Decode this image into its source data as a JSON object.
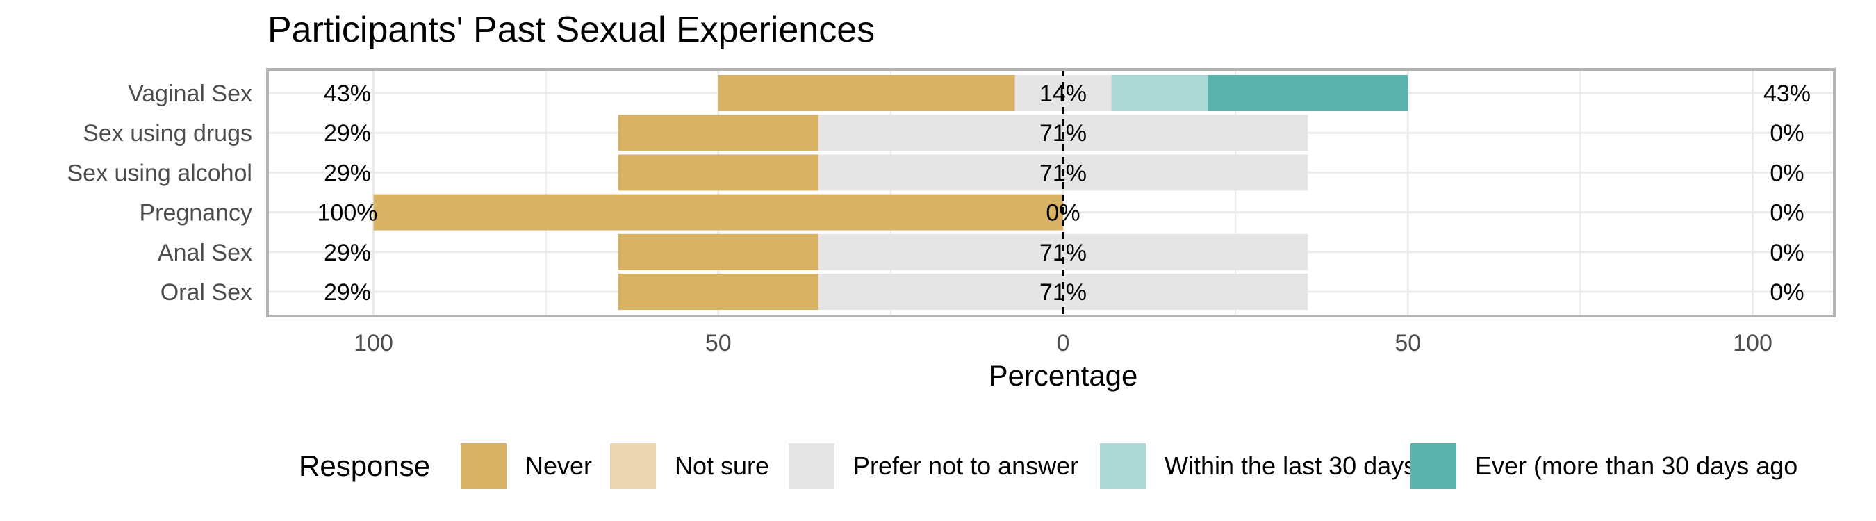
{
  "chart_data": {
    "type": "bar",
    "subtype": "diverging-stacked-likert",
    "title": "Participants' Past Sexual Experiences",
    "xlabel": "Percentage",
    "ylabel": "",
    "xlim": [
      -100,
      100
    ],
    "x_ticks": [
      -100,
      -50,
      0,
      50,
      100
    ],
    "x_tick_labels": [
      "100",
      "50",
      "0",
      "50",
      "100"
    ],
    "grid": true,
    "legend_position": "bottom",
    "legend_title": "Response",
    "levels": [
      {
        "name": "Never",
        "color": "#D8B365"
      },
      {
        "name": "Not sure",
        "color": "#EBD8B2"
      },
      {
        "name": "Prefer not to answer",
        "color": "#E5E5E5"
      },
      {
        "name": "Within the last 30 days",
        "color": "#ACD9D5"
      },
      {
        "name": "Ever (more than 30 days ago",
        "color": "#5AB4AC"
      }
    ],
    "categories": [
      "Vaginal Sex",
      "Sex using drugs",
      "Sex using alcohol",
      "Pregnancy",
      "Anal Sex",
      "Oral Sex"
    ],
    "rows": [
      {
        "category": "Vaginal Sex",
        "values": [
          43,
          0,
          14,
          14,
          29
        ],
        "left_label": "43%",
        "center_label": "14%",
        "right_label": "43%"
      },
      {
        "category": "Sex using drugs",
        "values": [
          29,
          0,
          71,
          0,
          0
        ],
        "left_label": "29%",
        "center_label": "71%",
        "right_label": "0%"
      },
      {
        "category": "Sex using alcohol",
        "values": [
          29,
          0,
          71,
          0,
          0
        ],
        "left_label": "29%",
        "center_label": "71%",
        "right_label": "0%"
      },
      {
        "category": "Pregnancy",
        "values": [
          100,
          0,
          0,
          0,
          0
        ],
        "left_label": "100%",
        "center_label": "0%",
        "right_label": "0%"
      },
      {
        "category": "Anal Sex",
        "values": [
          29,
          0,
          71,
          0,
          0
        ],
        "left_label": "29%",
        "center_label": "71%",
        "right_label": "0%"
      },
      {
        "category": "Oral Sex",
        "values": [
          29,
          0,
          71,
          0,
          0
        ],
        "left_label": "29%",
        "center_label": "71%",
        "right_label": "0%"
      }
    ]
  }
}
